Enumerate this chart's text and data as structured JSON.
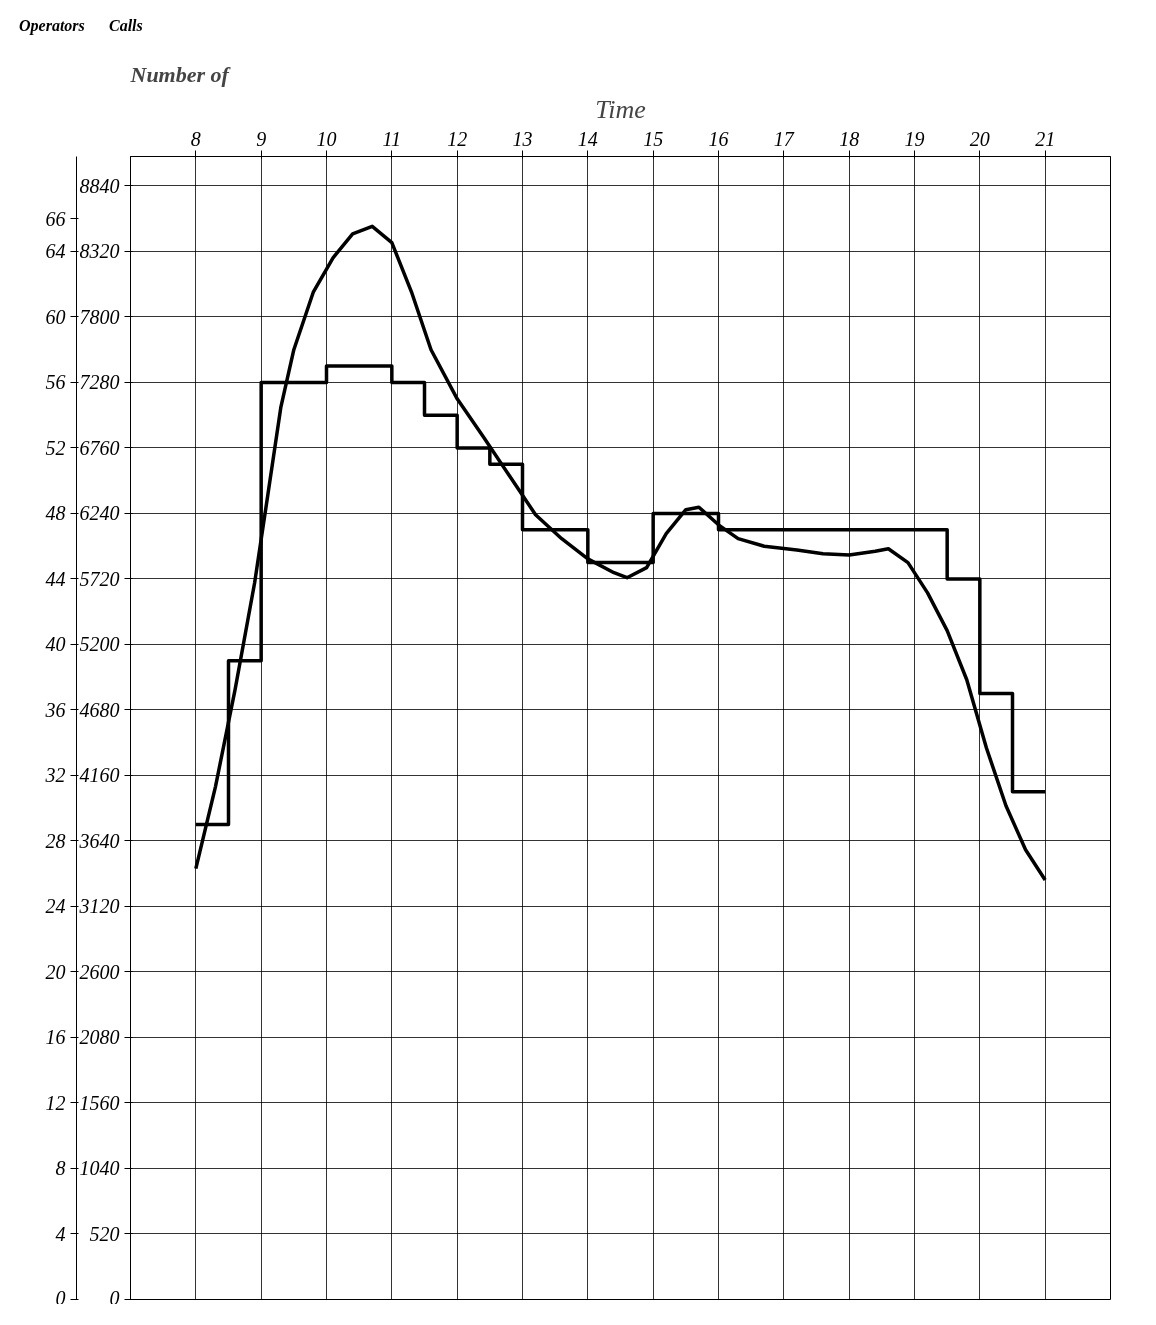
{
  "chart_data": {
    "type": "line",
    "title": "Number of",
    "xlabel": "Time",
    "annotations": [
      "Operators",
      "Calls"
    ],
    "xlim": [
      7,
      22
    ],
    "xticks": [
      8,
      9,
      10,
      11,
      12,
      13,
      14,
      15,
      16,
      17,
      18,
      19,
      20,
      21
    ],
    "ylim": [
      0,
      69.8
    ],
    "yticks": [
      0,
      4,
      8,
      12,
      16,
      20,
      24,
      28,
      32,
      36,
      40,
      44,
      48,
      52,
      56,
      60,
      64,
      66
    ],
    "y2lim": [
      0,
      9074
    ],
    "y2ticks": [
      0,
      520,
      1040,
      1560,
      2080,
      2600,
      3120,
      3640,
      4160,
      4680,
      5200,
      5720,
      6240,
      6760,
      7280,
      7800,
      8320,
      8840
    ],
    "grid": true,
    "line_style": "solid",
    "marker": "none",
    "series": [
      {
        "type": "step",
        "color": "#000000",
        "x": [
          8,
          8.5,
          9,
          10,
          11,
          11.5,
          12,
          12.5,
          13,
          14,
          15,
          16,
          19.5,
          20,
          20.5,
          21
        ],
        "values": [
          29,
          39,
          56,
          57,
          56,
          54,
          52,
          51,
          47,
          45,
          48,
          47,
          44,
          37,
          31,
          31
        ]
      },
      {
        "axis": "y2",
        "color": "#000000",
        "x": [
          8.0,
          8.3,
          8.6,
          8.9,
          9.1,
          9.3,
          9.5,
          9.8,
          10.1,
          10.4,
          10.7,
          11.0,
          11.3,
          11.6,
          12.0,
          12.4,
          12.8,
          13.2,
          13.6,
          14.0,
          14.4,
          14.6,
          14.9,
          15.2,
          15.5,
          15.7,
          16.0,
          16.3,
          16.7,
          17.2,
          17.6,
          18.0,
          18.4,
          18.6,
          18.9,
          19.2,
          19.5,
          19.8,
          20.1,
          20.4,
          20.7,
          21.0
        ],
        "values": [
          3420,
          4070,
          4840,
          5690,
          6380,
          7080,
          7540,
          8000,
          8270,
          8460,
          8520,
          8390,
          8000,
          7540,
          7150,
          6850,
          6540,
          6230,
          6040,
          5880,
          5770,
          5730,
          5810,
          6080,
          6270,
          6290,
          6150,
          6040,
          5980,
          5950,
          5920,
          5910,
          5940,
          5960,
          5850,
          5610,
          5310,
          4920,
          4380,
          3920,
          3570,
          3330
        ]
      }
    ]
  }
}
